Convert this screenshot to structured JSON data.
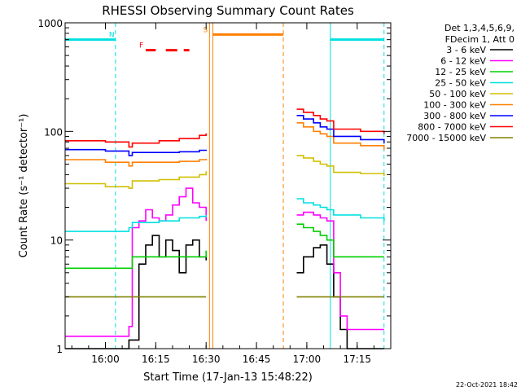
{
  "chart_data": {
    "type": "line",
    "title": "RHESSI Observing Summary Count Rates",
    "xlabel": "Start Time (17-Jan-13 15:48:22)",
    "ylabel": "Count Rate (s⁻¹ detector⁻¹)",
    "y_scale": "log",
    "ylim": [
      1,
      1000
    ],
    "xlim": [
      "15:48",
      "17:25"
    ],
    "x_ticks": [
      "16:00",
      "16:15",
      "16:30",
      "16:45",
      "17:00",
      "17:15"
    ],
    "y_ticks": [
      "1",
      "10",
      "100",
      "1000"
    ],
    "legend_header": [
      "Det 1,3,4,5,6,9,",
      "FDecim 1, Att 0"
    ],
    "legend_placement": "right",
    "timestamp": "22-Oct-2021 18:42",
    "series": [
      {
        "name": "3 - 6 keV",
        "color": "#000000",
        "seg1": [
          [
            "15:48",
            1.0
          ],
          [
            "16:00",
            1.0
          ],
          [
            "16:07",
            1.2
          ],
          [
            "16:10",
            6.0
          ],
          [
            "16:12",
            9.0
          ],
          [
            "16:14",
            11.0
          ],
          [
            "16:16",
            7.0
          ],
          [
            "16:18",
            10.0
          ],
          [
            "16:20",
            8.0
          ],
          [
            "16:22",
            5.0
          ],
          [
            "16:24",
            9.0
          ],
          [
            "16:26",
            10.0
          ],
          [
            "16:28",
            7.0
          ],
          [
            "16:30",
            6.5
          ]
        ],
        "seg2": [
          [
            "16:57",
            5.0
          ],
          [
            "16:59",
            7.0
          ],
          [
            "17:02",
            8.5
          ],
          [
            "17:04",
            9.0
          ],
          [
            "17:06",
            6.0
          ],
          [
            "17:08",
            3.0
          ],
          [
            "17:10",
            1.5
          ],
          [
            "17:12",
            1.0
          ],
          [
            "17:23",
            1.0
          ]
        ]
      },
      {
        "name": "6 - 12 keV",
        "color": "#ff00ff",
        "seg1": [
          [
            "15:48",
            1.3
          ],
          [
            "16:00",
            1.3
          ],
          [
            "16:07",
            1.6
          ],
          [
            "16:08",
            13.0
          ],
          [
            "16:10",
            15.0
          ],
          [
            "16:12",
            19.0
          ],
          [
            "16:14",
            16.0
          ],
          [
            "16:16",
            15.0
          ],
          [
            "16:18",
            17.0
          ],
          [
            "16:20",
            21.0
          ],
          [
            "16:22",
            25.0
          ],
          [
            "16:24",
            30.0
          ],
          [
            "16:26",
            22.0
          ],
          [
            "16:28",
            20.0
          ],
          [
            "16:30",
            15.0
          ]
        ],
        "seg2": [
          [
            "16:57",
            17.0
          ],
          [
            "16:59",
            18.0
          ],
          [
            "17:02",
            17.0
          ],
          [
            "17:04",
            16.0
          ],
          [
            "17:06",
            15.0
          ],
          [
            "17:08",
            5.0
          ],
          [
            "17:10",
            2.0
          ],
          [
            "17:12",
            1.5
          ],
          [
            "17:23",
            1.5
          ]
        ]
      },
      {
        "name": "12 - 25 keV",
        "color": "#00d000",
        "seg1": [
          [
            "15:48",
            5.5
          ],
          [
            "16:00",
            5.5
          ],
          [
            "16:07",
            5.5
          ],
          [
            "16:08",
            7.0
          ],
          [
            "16:16",
            7.0
          ],
          [
            "16:20",
            7.0
          ],
          [
            "16:26",
            7.0
          ],
          [
            "16:30",
            8.0
          ]
        ],
        "seg2": [
          [
            "16:57",
            14.0
          ],
          [
            "16:59",
            13.0
          ],
          [
            "17:02",
            12.0
          ],
          [
            "17:04",
            11.0
          ],
          [
            "17:06",
            10.0
          ],
          [
            "17:08",
            7.0
          ],
          [
            "17:16",
            7.0
          ],
          [
            "17:23",
            7.0
          ]
        ]
      },
      {
        "name": "25 - 50 keV",
        "color": "#00e0e0",
        "seg1": [
          [
            "15:48",
            12.0
          ],
          [
            "16:00",
            12.0
          ],
          [
            "16:07",
            13.0
          ],
          [
            "16:08",
            14.5
          ],
          [
            "16:16",
            15.0
          ],
          [
            "16:22",
            16.0
          ],
          [
            "16:28",
            16.5
          ],
          [
            "16:30",
            17.0
          ]
        ],
        "seg2": [
          [
            "16:57",
            24.0
          ],
          [
            "16:59",
            22.0
          ],
          [
            "17:02",
            21.0
          ],
          [
            "17:04",
            20.0
          ],
          [
            "17:06",
            19.0
          ],
          [
            "17:08",
            17.0
          ],
          [
            "17:16",
            16.0
          ],
          [
            "17:23",
            15.0
          ]
        ]
      },
      {
        "name": "50 - 100 keV",
        "color": "#d0c000",
        "seg1": [
          [
            "15:48",
            33.0
          ],
          [
            "16:00",
            31.0
          ],
          [
            "16:07",
            30.0
          ],
          [
            "16:08",
            35.0
          ],
          [
            "16:16",
            36.0
          ],
          [
            "16:22",
            38.0
          ],
          [
            "16:28",
            40.0
          ],
          [
            "16:30",
            43.0
          ]
        ],
        "seg2": [
          [
            "16:57",
            60.0
          ],
          [
            "16:59",
            57.0
          ],
          [
            "17:02",
            53.0
          ],
          [
            "17:04",
            50.0
          ],
          [
            "17:06",
            48.0
          ],
          [
            "17:08",
            42.0
          ],
          [
            "17:16",
            41.0
          ],
          [
            "17:23",
            39.0
          ]
        ]
      },
      {
        "name": "100 - 300 keV",
        "color": "#ff8000",
        "seg1": [
          [
            "15:48",
            55.0
          ],
          [
            "16:00",
            52.0
          ],
          [
            "16:07",
            48.0
          ],
          [
            "16:08",
            52.0
          ],
          [
            "16:16",
            52.0
          ],
          [
            "16:22",
            53.0
          ],
          [
            "16:28",
            55.0
          ],
          [
            "16:30",
            56.0
          ]
        ],
        "seg2": [
          [
            "16:57",
            120.0
          ],
          [
            "16:59",
            110.0
          ],
          [
            "17:02",
            100.0
          ],
          [
            "17:04",
            95.0
          ],
          [
            "17:06",
            90.0
          ],
          [
            "17:08",
            78.0
          ],
          [
            "17:16",
            74.0
          ],
          [
            "17:23",
            68.0
          ]
        ]
      },
      {
        "name": "300 - 800 keV",
        "color": "#0000ff",
        "seg1": [
          [
            "15:48",
            68.0
          ],
          [
            "16:00",
            66.0
          ],
          [
            "16:07",
            60.0
          ],
          [
            "16:08",
            64.0
          ],
          [
            "16:16",
            64.0
          ],
          [
            "16:22",
            65.0
          ],
          [
            "16:28",
            67.0
          ],
          [
            "16:30",
            68.0
          ]
        ],
        "seg2": [
          [
            "16:57",
            140.0
          ],
          [
            "16:59",
            130.0
          ],
          [
            "17:02",
            120.0
          ],
          [
            "17:04",
            110.0
          ],
          [
            "17:06",
            105.0
          ],
          [
            "17:08",
            90.0
          ],
          [
            "17:16",
            84.0
          ],
          [
            "17:23",
            78.0
          ]
        ]
      },
      {
        "name": "800 - 7000 keV",
        "color": "#ff0000",
        "seg1": [
          [
            "15:48",
            82.0
          ],
          [
            "16:00",
            80.0
          ],
          [
            "16:07",
            72.0
          ],
          [
            "16:08",
            78.0
          ],
          [
            "16:16",
            82.0
          ],
          [
            "16:22",
            86.0
          ],
          [
            "16:28",
            92.0
          ],
          [
            "16:30",
            96.0
          ]
        ],
        "seg2": [
          [
            "16:57",
            160.0
          ],
          [
            "16:59",
            150.0
          ],
          [
            "17:02",
            140.0
          ],
          [
            "17:04",
            130.0
          ],
          [
            "17:06",
            125.0
          ],
          [
            "17:08",
            105.0
          ],
          [
            "17:16",
            100.0
          ],
          [
            "17:23",
            95.0
          ]
        ]
      },
      {
        "name": "7000 - 15000 keV",
        "color": "#808000",
        "seg1": [
          [
            "15:48",
            3.0
          ],
          [
            "16:00",
            3.0
          ],
          [
            "16:07",
            3.0
          ],
          [
            "16:16",
            3.0
          ],
          [
            "16:30",
            3.0
          ]
        ],
        "seg2": [
          [
            "16:57",
            3.0
          ],
          [
            "17:04",
            3.0
          ],
          [
            "17:08",
            3.0
          ],
          [
            "17:16",
            3.0
          ],
          [
            "17:23",
            3.0
          ]
        ]
      }
    ],
    "flags": [
      {
        "letter": "N",
        "color": "#00e0e0",
        "bars": [
          [
            "15:48",
            "16:03"
          ],
          [
            "17:07",
            "17:23"
          ]
        ],
        "level": 700
      },
      {
        "letter": "F",
        "color": "#ff0000",
        "bars": [
          [
            "16:12",
            "16:15"
          ],
          [
            "16:18",
            "16:25"
          ]
        ],
        "level": 560
      },
      {
        "letter": "S",
        "color": "#ff8000",
        "bars": [
          [
            "16:32",
            "16:53"
          ]
        ],
        "level": 780
      }
    ]
  }
}
